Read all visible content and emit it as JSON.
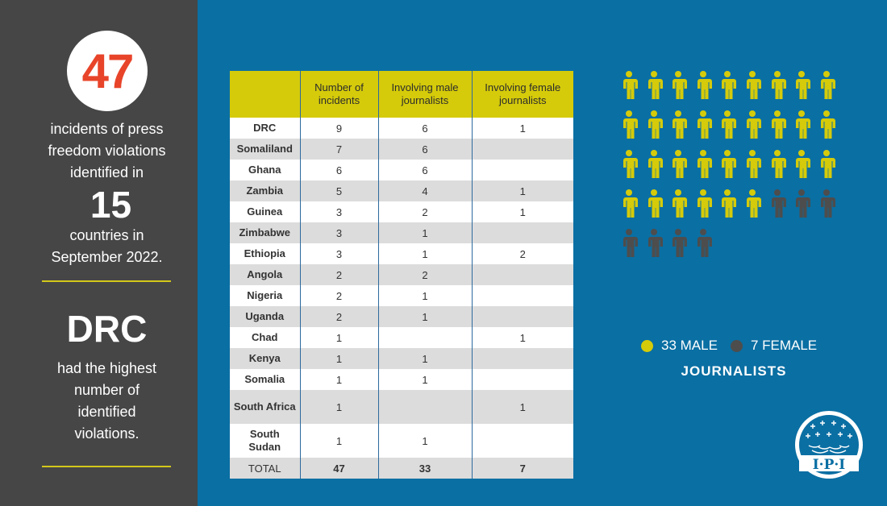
{
  "left": {
    "incidents_number": "47",
    "text1_lines": [
      "incidents of press",
      "freedom violations",
      "identified in"
    ],
    "countries_number": "15",
    "text2_lines": [
      "countries in",
      "September 2022."
    ],
    "highest_country": "DRC",
    "text3_lines": [
      "had the highest",
      "number of",
      "identified",
      "violations."
    ]
  },
  "table": {
    "headers": [
      "",
      "Number of incidents",
      "Involving male journalists",
      "Involving female journalists"
    ],
    "rows": [
      {
        "country": "DRC",
        "incidents": "9",
        "male": "6",
        "female": "1"
      },
      {
        "country": "Somaliland",
        "incidents": "7",
        "male": "6",
        "female": ""
      },
      {
        "country": "Ghana",
        "incidents": "6",
        "male": "6",
        "female": ""
      },
      {
        "country": "Zambia",
        "incidents": "5",
        "male": "4",
        "female": "1"
      },
      {
        "country": "Guinea",
        "incidents": "3",
        "male": "2",
        "female": "1"
      },
      {
        "country": "Zimbabwe",
        "incidents": "3",
        "male": "1",
        "female": ""
      },
      {
        "country": "Ethiopia",
        "incidents": "3",
        "male": "1",
        "female": "2"
      },
      {
        "country": "Angola",
        "incidents": "2",
        "male": "2",
        "female": ""
      },
      {
        "country": "Nigeria",
        "incidents": "2",
        "male": "1",
        "female": ""
      },
      {
        "country": "Uganda",
        "incidents": "2",
        "male": "1",
        "female": ""
      },
      {
        "country": "Chad",
        "incidents": "1",
        "male": "",
        "female": "1"
      },
      {
        "country": "Kenya",
        "incidents": "1",
        "male": "1",
        "female": ""
      },
      {
        "country": "Somalia",
        "incidents": "1",
        "male": "1",
        "female": ""
      },
      {
        "country": "South Africa",
        "incidents": "1",
        "male": "",
        "female": "1"
      },
      {
        "country": "South Sudan",
        "incidents": "1",
        "male": "1",
        "female": ""
      }
    ],
    "total": {
      "label": "TOTAL",
      "incidents": "47",
      "male": "33",
      "female": "7"
    }
  },
  "pictogram": {
    "male_count": 33,
    "female_count": 7,
    "male_color": "#d5cb0a",
    "female_color": "#4d4d4d",
    "icon": "person-icon"
  },
  "legend": {
    "male_label": "33 MALE",
    "female_label": "7 FEMALE",
    "subtitle": "JOURNALISTS"
  },
  "logo": {
    "text": "I·P·I",
    "icon": "ipi-globe-logo"
  },
  "colors": {
    "background": "#0a6fa3",
    "panel": "#464646",
    "accent_red": "#e8442a",
    "accent_yellow": "#d5cb0a"
  }
}
